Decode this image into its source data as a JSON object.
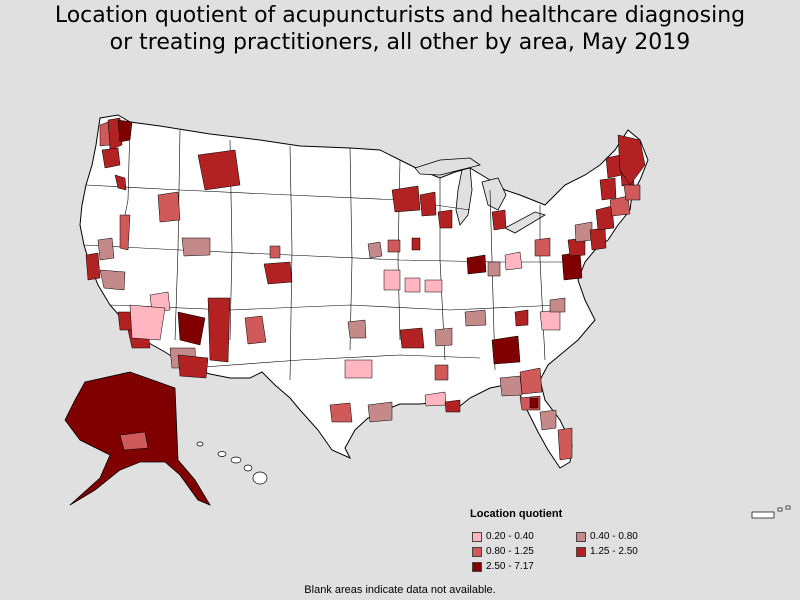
{
  "title_line1": "Location quotient of acupuncturists and healthcare diagnosing",
  "title_line2": "or treating practitioners, all other by area, May 2019",
  "legend": {
    "title": "Location quotient",
    "items": [
      {
        "label": "0.20 - 0.40",
        "color": "#ffb6c1"
      },
      {
        "label": "0.40 - 0.80",
        "color": "#c48a8a"
      },
      {
        "label": "0.80 - 1.25",
        "color": "#d05a5a"
      },
      {
        "label": "1.25 - 2.50",
        "color": "#b22222"
      },
      {
        "label": "2.50 - 7.17",
        "color": "#800000"
      }
    ]
  },
  "footnote": "Blank areas indicate data not available.",
  "colors": {
    "background": "#e0e0e0",
    "land": "#ffffff",
    "border": "#000000"
  }
}
